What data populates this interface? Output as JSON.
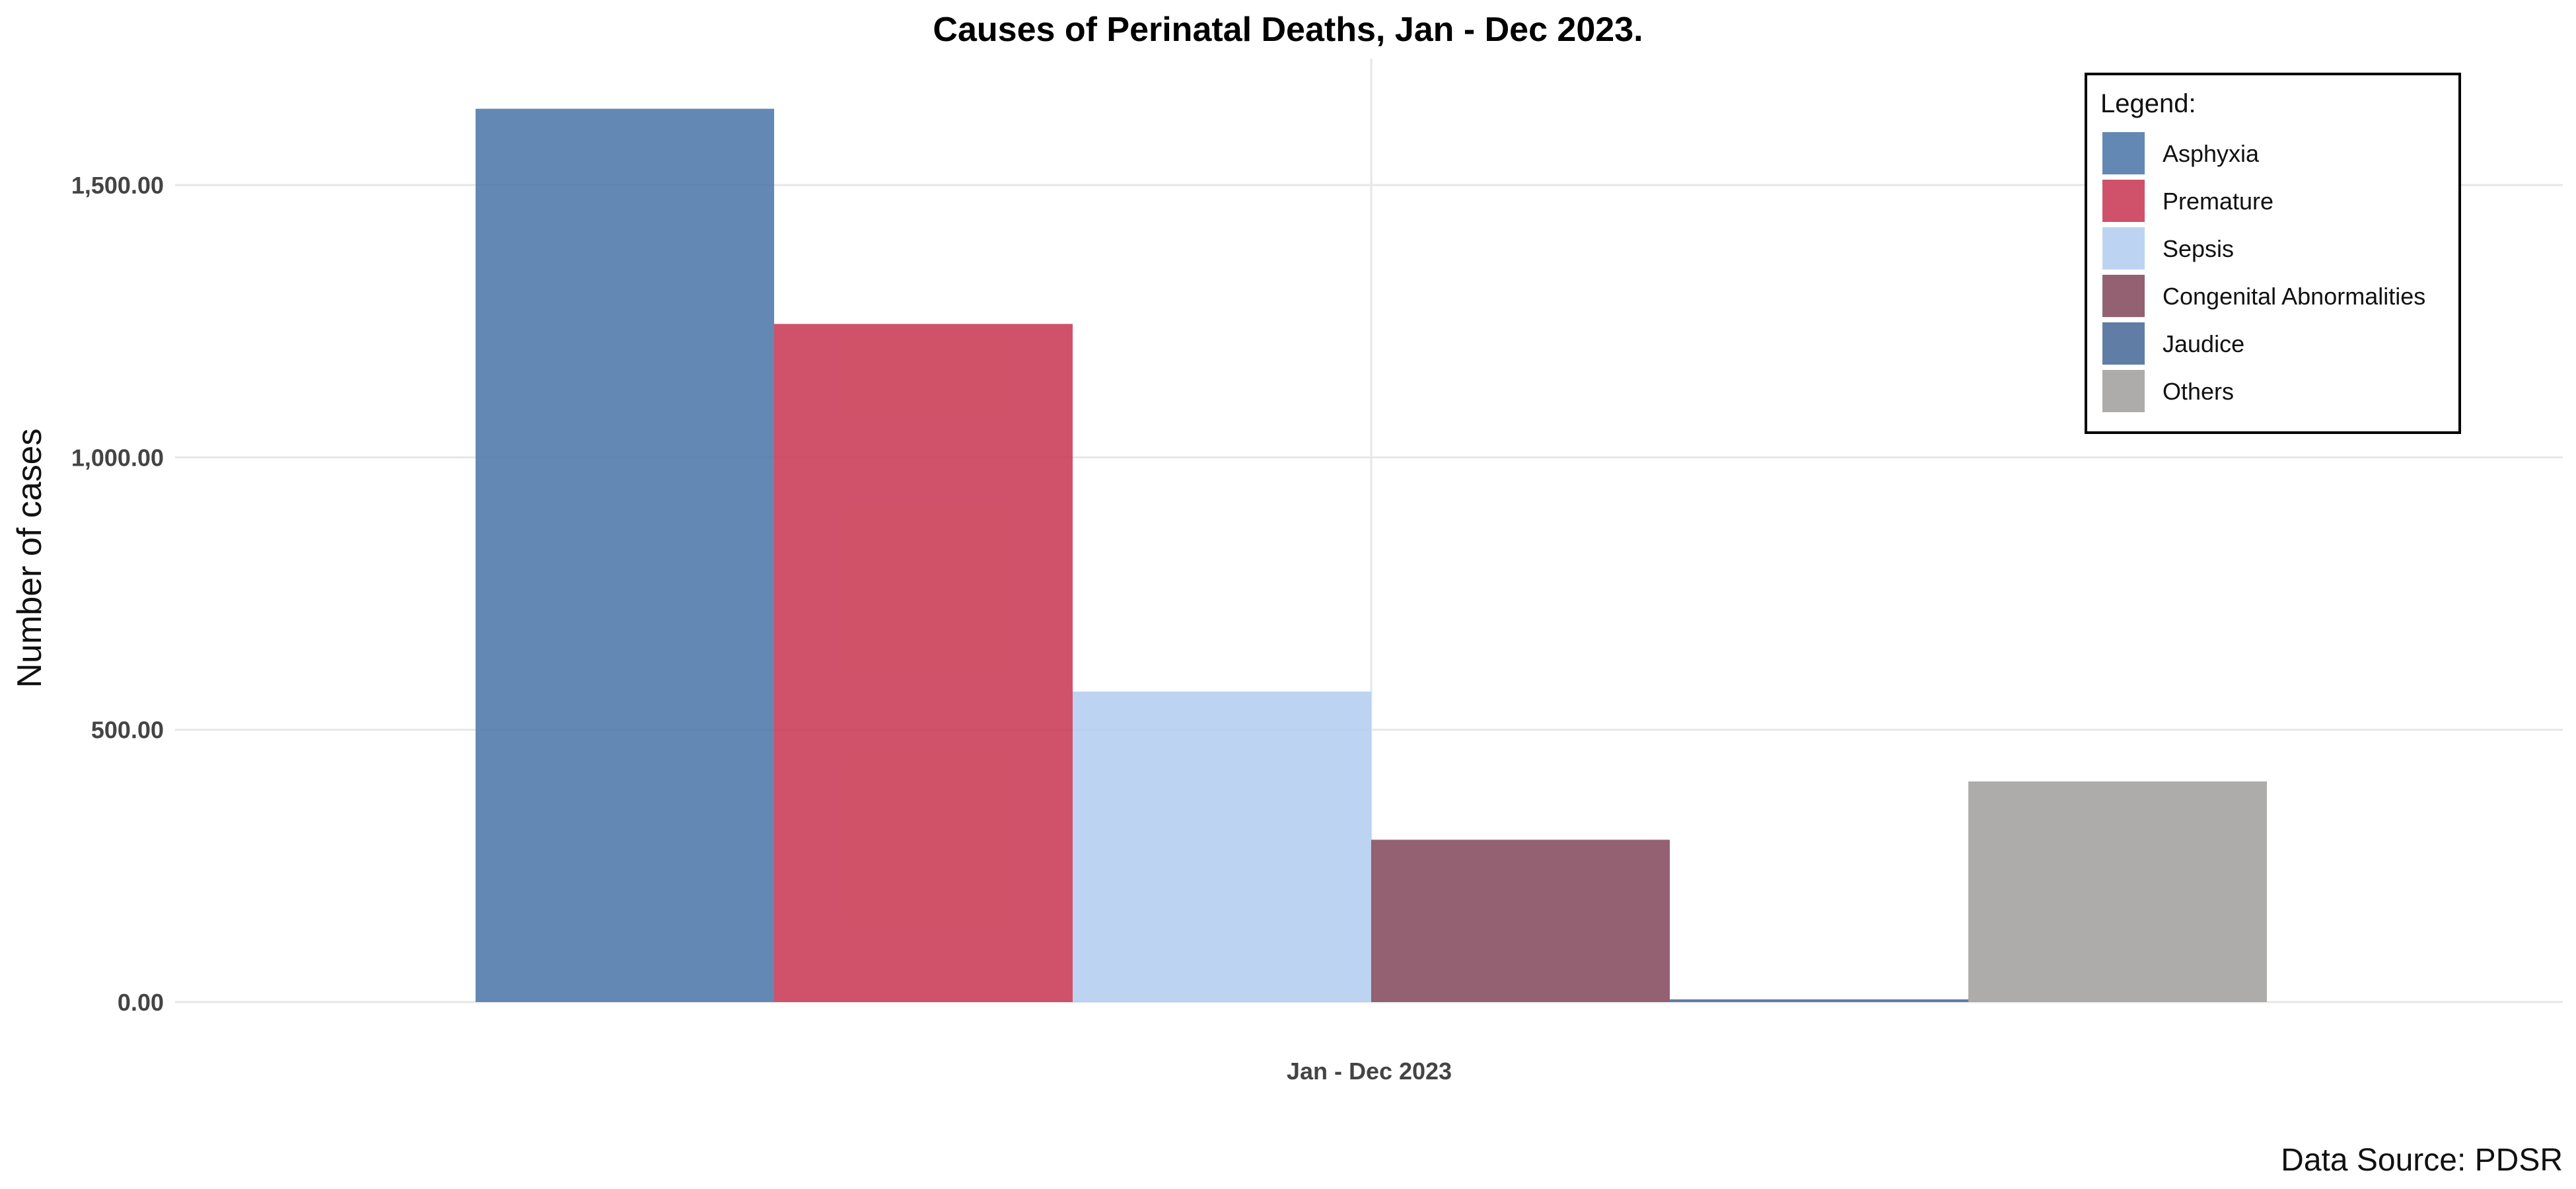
{
  "chart_data": {
    "type": "bar",
    "title": "Causes of Perinatal Deaths, Jan - Dec 2023.",
    "xlabel": "",
    "ylabel": "Number of cases",
    "categories": [
      "Jan - Dec 2023"
    ],
    "series": [
      {
        "name": "Asphyxia",
        "values": [
          1640
        ],
        "color": "#4f78aa"
      },
      {
        "name": "Premature",
        "values": [
          1245
        ],
        "color": "#c83a55"
      },
      {
        "name": "Sepsis",
        "values": [
          570
        ],
        "color": "#b3cef0"
      },
      {
        "name": "Congenital Abnormalities",
        "values": [
          298
        ],
        "color": "#844b5f"
      },
      {
        "name": "Jaudice",
        "values": [
          5
        ],
        "color": "#4a6b98"
      },
      {
        "name": "Others",
        "values": [
          405
        ],
        "color": "#a2a19e"
      }
    ],
    "ylim": [
      0,
      1720
    ],
    "yticks": [
      0,
      500,
      1000,
      1500
    ],
    "ytick_labels": [
      "0.00",
      "500.00",
      "1,000.00",
      "1,500.00"
    ],
    "grid": true,
    "bar_opacity": 0.88,
    "legend": {
      "title": "Legend:",
      "position": "top-right"
    },
    "caption": "Data Source: PDSR"
  }
}
